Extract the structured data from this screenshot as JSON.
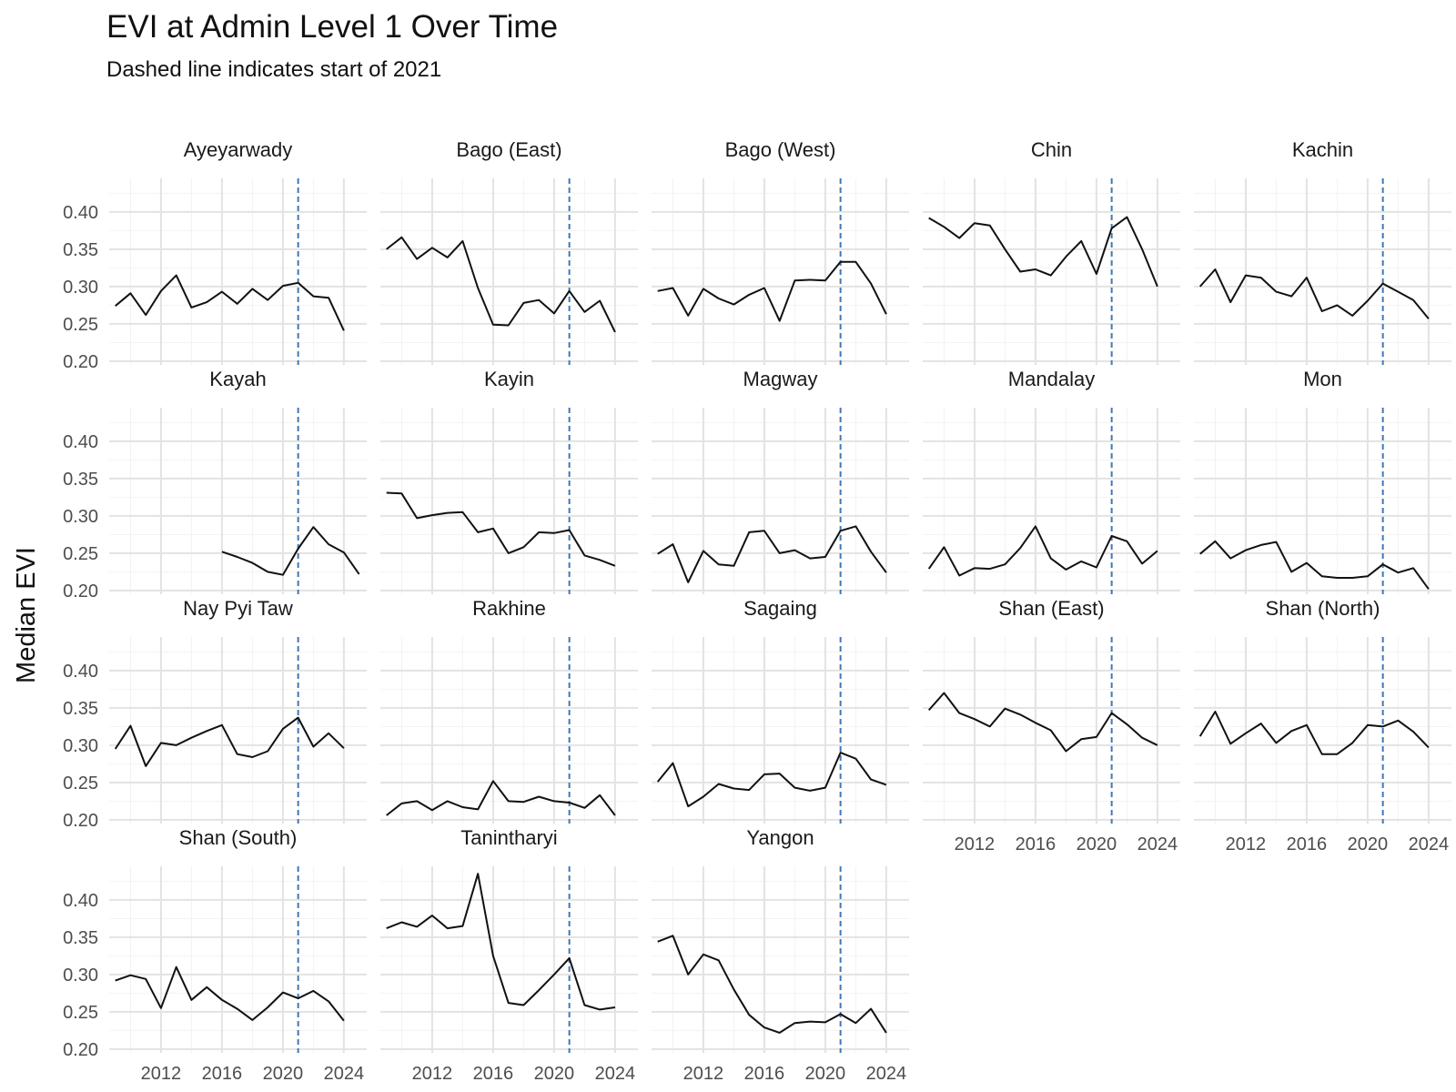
{
  "chart_data": {
    "type": "line",
    "title": "EVI at Admin Level 1 Over Time",
    "subtitle": "Dashed line indicates start of 2021",
    "ylabel": "Median EVI",
    "xlabel": "",
    "x_ticks": [
      2012,
      2016,
      2020,
      2024
    ],
    "y_ticks": [
      "0.20",
      "0.25",
      "0.30",
      "0.35",
      "0.40"
    ],
    "ylim": [
      0.195,
      0.445
    ],
    "xlim": [
      2008.6,
      2025.5
    ],
    "reference_line": {
      "x": 2021,
      "style": "dashed",
      "color": "#4178b4"
    },
    "line_color": "#111111",
    "grid": true,
    "panels": [
      {
        "name": "Ayeyarwady",
        "x": [
          2009,
          2010,
          2011,
          2012,
          2013,
          2014,
          2015,
          2016,
          2017,
          2018,
          2019,
          2020,
          2021,
          2022,
          2023,
          2024,
          2025
        ],
        "y": [
          0.274,
          0.291,
          0.262,
          0.294,
          0.315,
          0.272,
          0.279,
          0.293,
          0.277,
          0.297,
          0.282,
          0.301,
          0.305,
          0.287,
          0.285,
          0.241,
          null
        ]
      },
      {
        "name": "Bago (East)",
        "x": [
          2009,
          2010,
          2011,
          2012,
          2013,
          2014,
          2015,
          2016,
          2017,
          2018,
          2019,
          2020,
          2021,
          2022,
          2023,
          2024,
          2025
        ],
        "y": [
          0.35,
          0.366,
          0.337,
          0.352,
          0.339,
          0.361,
          0.298,
          0.249,
          0.248,
          0.278,
          0.282,
          0.264,
          0.294,
          0.266,
          0.281,
          0.239,
          null
        ]
      },
      {
        "name": "Bago (West)",
        "x": [
          2009,
          2010,
          2011,
          2012,
          2013,
          2014,
          2015,
          2016,
          2017,
          2018,
          2019,
          2020,
          2021,
          2022,
          2023,
          2024,
          2025
        ],
        "y": [
          0.294,
          0.298,
          0.261,
          0.297,
          0.284,
          0.276,
          0.289,
          0.298,
          0.254,
          0.308,
          0.309,
          0.308,
          0.333,
          0.333,
          0.304,
          0.263,
          null
        ]
      },
      {
        "name": "Chin",
        "x": [
          2009,
          2010,
          2011,
          2012,
          2013,
          2014,
          2015,
          2016,
          2017,
          2018,
          2019,
          2020,
          2021,
          2022,
          2023,
          2024,
          2025
        ],
        "y": [
          0.392,
          0.38,
          0.365,
          0.385,
          0.382,
          0.35,
          0.32,
          0.323,
          0.315,
          0.34,
          0.361,
          0.317,
          0.378,
          0.393,
          0.35,
          0.3,
          null
        ]
      },
      {
        "name": "Kachin",
        "x": [
          2009,
          2010,
          2011,
          2012,
          2013,
          2014,
          2015,
          2016,
          2017,
          2018,
          2019,
          2020,
          2021,
          2022,
          2023,
          2024,
          2025
        ],
        "y": [
          0.3,
          0.323,
          0.279,
          0.315,
          0.312,
          0.293,
          0.287,
          0.312,
          0.267,
          0.275,
          0.261,
          0.281,
          0.304,
          0.293,
          0.282,
          0.257,
          null
        ]
      },
      {
        "name": "Kayah",
        "x": [
          2009,
          2010,
          2011,
          2012,
          2013,
          2014,
          2015,
          2016,
          2017,
          2018,
          2019,
          2020,
          2021,
          2022,
          2023,
          2024,
          2025
        ],
        "y": [
          null,
          null,
          null,
          null,
          null,
          null,
          null,
          0.252,
          0.245,
          0.237,
          0.225,
          0.221,
          0.256,
          0.285,
          0.262,
          0.251,
          0.222
        ]
      },
      {
        "name": "Kayin",
        "x": [
          2009,
          2010,
          2011,
          2012,
          2013,
          2014,
          2015,
          2016,
          2017,
          2018,
          2019,
          2020,
          2021,
          2022,
          2023,
          2024,
          2025
        ],
        "y": [
          0.331,
          0.33,
          0.297,
          0.301,
          0.304,
          0.305,
          0.278,
          0.283,
          0.25,
          0.258,
          0.278,
          0.277,
          0.281,
          0.247,
          0.241,
          0.233,
          null
        ]
      },
      {
        "name": "Magway",
        "x": [
          2009,
          2010,
          2011,
          2012,
          2013,
          2014,
          2015,
          2016,
          2017,
          2018,
          2019,
          2020,
          2021,
          2022,
          2023,
          2024,
          2025
        ],
        "y": [
          0.249,
          0.262,
          0.211,
          0.253,
          0.235,
          0.233,
          0.278,
          0.28,
          0.25,
          0.254,
          0.243,
          0.245,
          0.28,
          0.286,
          0.252,
          0.224,
          null
        ]
      },
      {
        "name": "Mandalay",
        "x": [
          2009,
          2010,
          2011,
          2012,
          2013,
          2014,
          2015,
          2016,
          2017,
          2018,
          2019,
          2020,
          2021,
          2022,
          2023,
          2024,
          2025
        ],
        "y": [
          0.229,
          0.258,
          0.22,
          0.23,
          0.229,
          0.235,
          0.257,
          0.286,
          0.243,
          0.228,
          0.239,
          0.231,
          0.273,
          0.266,
          0.236,
          0.253,
          null
        ]
      },
      {
        "name": "Mon",
        "x": [
          2009,
          2010,
          2011,
          2012,
          2013,
          2014,
          2015,
          2016,
          2017,
          2018,
          2019,
          2020,
          2021,
          2022,
          2023,
          2024,
          2025
        ],
        "y": [
          0.249,
          0.266,
          0.243,
          0.254,
          0.261,
          0.265,
          0.225,
          0.237,
          0.219,
          0.217,
          0.217,
          0.219,
          0.235,
          0.224,
          0.23,
          0.202,
          null
        ]
      },
      {
        "name": "Nay Pyi Taw",
        "x": [
          2009,
          2010,
          2011,
          2012,
          2013,
          2014,
          2015,
          2016,
          2017,
          2018,
          2019,
          2020,
          2021,
          2022,
          2023,
          2024,
          2025
        ],
        "y": [
          0.295,
          0.326,
          0.272,
          0.303,
          0.3,
          0.31,
          0.319,
          0.327,
          0.288,
          0.284,
          0.292,
          0.322,
          0.337,
          0.298,
          0.316,
          0.296,
          null
        ]
      },
      {
        "name": "Rakhine",
        "x": [
          2009,
          2010,
          2011,
          2012,
          2013,
          2014,
          2015,
          2016,
          2017,
          2018,
          2019,
          2020,
          2021,
          2022,
          2023,
          2024,
          2025
        ],
        "y": [
          0.206,
          0.222,
          0.225,
          0.213,
          0.225,
          0.217,
          0.214,
          0.252,
          0.225,
          0.224,
          0.231,
          0.225,
          0.223,
          0.216,
          0.233,
          0.206,
          null
        ]
      },
      {
        "name": "Sagaing",
        "x": [
          2009,
          2010,
          2011,
          2012,
          2013,
          2014,
          2015,
          2016,
          2017,
          2018,
          2019,
          2020,
          2021,
          2022,
          2023,
          2024,
          2025
        ],
        "y": [
          0.251,
          0.276,
          0.218,
          0.231,
          0.248,
          0.242,
          0.24,
          0.261,
          0.262,
          0.243,
          0.239,
          0.243,
          0.29,
          0.282,
          0.254,
          0.247,
          null
        ]
      },
      {
        "name": "Shan (East)",
        "x": [
          2009,
          2010,
          2011,
          2012,
          2013,
          2014,
          2015,
          2016,
          2017,
          2018,
          2019,
          2020,
          2021,
          2022,
          2023,
          2024,
          2025
        ],
        "y": [
          0.347,
          0.37,
          0.343,
          0.335,
          0.325,
          0.349,
          0.341,
          0.33,
          0.32,
          0.292,
          0.308,
          0.311,
          0.343,
          0.328,
          0.31,
          0.3,
          null
        ]
      },
      {
        "name": "Shan (North)",
        "x": [
          2009,
          2010,
          2011,
          2012,
          2013,
          2014,
          2015,
          2016,
          2017,
          2018,
          2019,
          2020,
          2021,
          2022,
          2023,
          2024,
          2025
        ],
        "y": [
          0.312,
          0.345,
          0.302,
          0.316,
          0.329,
          0.303,
          0.319,
          0.327,
          0.288,
          0.288,
          0.303,
          0.327,
          0.325,
          0.333,
          0.318,
          0.297,
          null
        ]
      },
      {
        "name": "Shan (South)",
        "x": [
          2009,
          2010,
          2011,
          2012,
          2013,
          2014,
          2015,
          2016,
          2017,
          2018,
          2019,
          2020,
          2021,
          2022,
          2023,
          2024,
          2025
        ],
        "y": [
          0.292,
          0.299,
          0.294,
          0.255,
          0.31,
          0.266,
          0.283,
          0.266,
          0.254,
          0.239,
          0.256,
          0.276,
          0.268,
          0.278,
          0.264,
          0.238,
          null
        ]
      },
      {
        "name": "Tanintharyi",
        "x": [
          2009,
          2010,
          2011,
          2012,
          2013,
          2014,
          2015,
          2016,
          2017,
          2018,
          2019,
          2020,
          2021,
          2022,
          2023,
          2024,
          2025
        ],
        "y": [
          0.362,
          0.37,
          0.364,
          0.379,
          0.362,
          0.365,
          0.435,
          0.325,
          0.262,
          0.259,
          0.279,
          0.3,
          0.322,
          0.259,
          0.253,
          0.256,
          null
        ]
      },
      {
        "name": "Yangon",
        "x": [
          2009,
          2010,
          2011,
          2012,
          2013,
          2014,
          2015,
          2016,
          2017,
          2018,
          2019,
          2020,
          2021,
          2022,
          2023,
          2024,
          2025
        ],
        "y": [
          0.344,
          0.352,
          0.3,
          0.327,
          0.319,
          0.28,
          0.246,
          0.229,
          0.222,
          0.235,
          0.237,
          0.236,
          0.247,
          0.235,
          0.254,
          0.222,
          null
        ]
      }
    ]
  }
}
